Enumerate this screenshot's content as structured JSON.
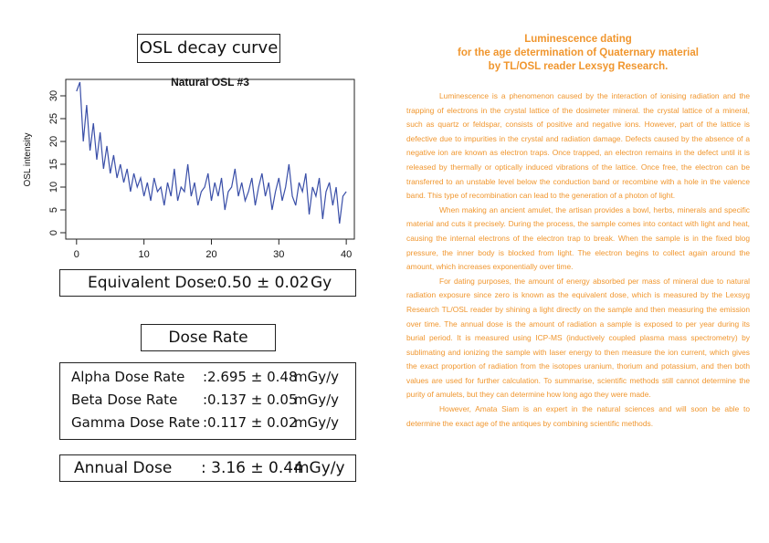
{
  "osl_title": "OSL decay curve",
  "chart_data": {
    "type": "line",
    "title": "Natural OSL #3",
    "y_label": "OSL intensity",
    "color": "#3a4fa8",
    "x": [
      0,
      0.5,
      1,
      1.5,
      2,
      2.5,
      3,
      3.5,
      4,
      4.5,
      5,
      5.5,
      6,
      6.5,
      7,
      7.5,
      8,
      8.5,
      9,
      9.5,
      10,
      10.5,
      11,
      11.5,
      12,
      12.5,
      13,
      13.5,
      14,
      14.5,
      15,
      15.5,
      16,
      16.5,
      17,
      17.5,
      18,
      18.5,
      19,
      19.5,
      20,
      20.5,
      21,
      21.5,
      22,
      22.5,
      23,
      23.5,
      24,
      24.5,
      25,
      25.5,
      26,
      26.5,
      27,
      27.5,
      28,
      28.5,
      29,
      29.5,
      30,
      30.5,
      31,
      31.5,
      32,
      32.5,
      33,
      33.5,
      34,
      34.5,
      35,
      35.5,
      36,
      36.5,
      37,
      37.5,
      38,
      38.5,
      39,
      39.5,
      40
    ],
    "values": [
      31,
      33,
      20,
      28,
      18,
      24,
      16,
      22,
      14,
      19,
      13,
      17,
      12,
      15,
      11,
      14,
      9,
      13,
      10,
      12,
      8,
      11,
      7,
      12,
      9,
      10,
      6,
      11,
      8,
      14,
      7,
      10,
      9,
      15,
      8,
      11,
      6,
      9,
      10,
      13,
      7,
      11,
      8,
      12,
      5,
      9,
      10,
      14,
      8,
      11,
      7,
      9,
      12,
      6,
      10,
      13,
      8,
      11,
      5,
      9,
      12,
      7,
      10,
      15,
      8,
      6,
      11,
      9,
      13,
      4,
      10,
      8,
      12,
      3,
      9,
      11,
      6,
      10,
      2,
      8,
      9
    ],
    "xlim": [
      -1.6,
      41.2
    ],
    "ylim": [
      -1.4,
      33.6
    ],
    "xticks": [
      0,
      10,
      20,
      30,
      40
    ],
    "yticks": [
      0,
      5,
      10,
      15,
      20,
      25,
      30
    ]
  },
  "equivalent_dose": {
    "label": "Equivalent Dose",
    "value": ":0.50 ± 0.02",
    "unit": "Gy"
  },
  "dose_rate_title": "Dose Rate",
  "dose_rates": [
    {
      "label": "Alpha Dose Rate",
      "value": ":2.695 ± 0.48",
      "unit": "mGy/y"
    },
    {
      "label": "Beta Dose Rate",
      "value": ":0.137 ± 0.05",
      "unit": "mGy/y"
    },
    {
      "label": "Gamma Dose Rate",
      "value": ":0.117 ± 0.02",
      "unit": "mGy/y"
    }
  ],
  "annual_dose": {
    "label": "Annual Dose",
    "value": ": 3.16 ± 0.44",
    "unit": "mGy/y"
  },
  "article": {
    "title_lines": [
      "Luminescence dating",
      "for the age determination of Quaternary material",
      "by TL/OSL reader Lexsyg Research."
    ],
    "paragraphs": [
      "Luminescence is a phenomenon caused by the interaction of ionising radiation and the trapping of electrons in the crystal lattice of the dosimeter mineral. the crystal lattice of a mineral, such as quartz or feldspar, consists of positive and negative ions. However, part of the lattice is defective due to impurities in the crystal and radiation damage. Defects caused by the absence of a negative ion are known as electron traps. Once trapped, an electron remains in the defect until it is released by thermally or optically induced vibrations of the lattice. Once free, the electron can be transferred to an unstable level below the conduction band or recombine with a hole in the valence band. This type of recombination can lead to the generation of a photon of light.",
      "When making an ancient amulet, the artisan provides a bowl, herbs, minerals and specific material and cuts it precisely. During the process, the sample comes into contact with light and heat, causing the internal electrons of the electron trap to break. When the sample is in the fixed blog pressure, the inner body is blocked from light. The electron begins to collect again around the amount, which increases exponentially over time.",
      "For dating purposes, the amount of energy absorbed per mass of mineral due to natural radiation exposure since zero is known as the equivalent dose, which is measured by the Lexsyg Research TL/OSL reader by shining a light directly on the sample and then measuring the emission over time. The annual dose is the amount of radiation a sample is exposed to per year during its burial period. It is measured using ICP-MS (inductively coupled plasma mass spectrometry) by sublimating and ionizing the sample with laser energy to then measure the ion current, which gives the exact proportion of radiation from the isotopes uranium, thorium and potassium, and then both values are used for further calculation. To summarise, scientific methods still cannot determine the purity of amulets, but they can determine how long ago they were made.",
      "However, Amata Siam is an expert in the natural sciences and will soon be able to determine the exact age of the antiques by combining scientific methods."
    ]
  }
}
